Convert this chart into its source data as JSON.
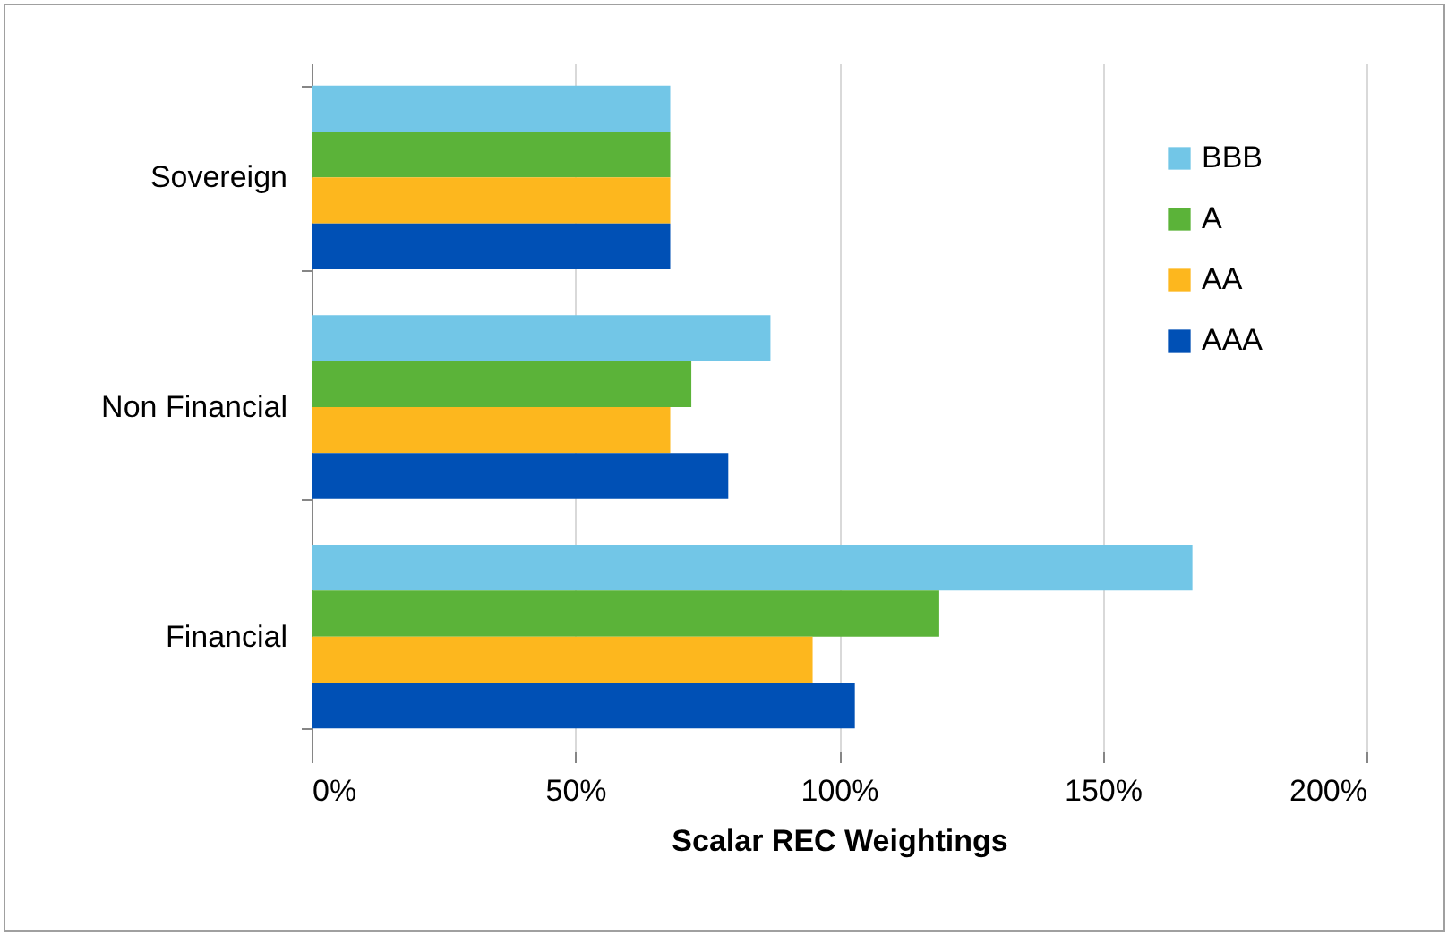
{
  "chart_data": {
    "type": "bar",
    "orientation": "horizontal",
    "xlabel": "Scalar REC Weightings",
    "categories": [
      "Sovereign",
      "Non Financial",
      "Financial"
    ],
    "series": [
      {
        "name": "BBB",
        "color": "#72c6e7",
        "values": [
          68,
          87,
          167
        ]
      },
      {
        "name": "A",
        "color": "#5bb339",
        "values": [
          68,
          72,
          119
        ]
      },
      {
        "name": "AA",
        "color": "#fdb71e",
        "values": [
          68,
          68,
          95
        ]
      },
      {
        "name": "AAA",
        "color": "#0050b5",
        "values": [
          68,
          79,
          103
        ]
      }
    ],
    "xlim": [
      0,
      200
    ],
    "xticks": [
      {
        "value": 0,
        "label": "0%"
      },
      {
        "value": 50,
        "label": "50%"
      },
      {
        "value": 100,
        "label": "100%"
      },
      {
        "value": 150,
        "label": "150%"
      },
      {
        "value": 200,
        "label": "200%"
      }
    ],
    "grid": "x",
    "legend": "top right"
  }
}
